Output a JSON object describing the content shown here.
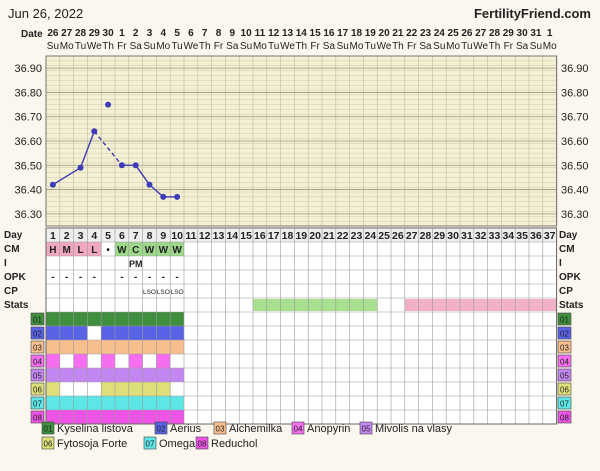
{
  "header": {
    "date": "Jun 26, 2022",
    "brand": "FertilityFriend.com"
  },
  "row_labels": {
    "date": "Date",
    "day": "Day",
    "cm": "CM",
    "intercourse": "I",
    "opk": "OPK",
    "cp": "CP",
    "stats": "Stats"
  },
  "calendar": {
    "dates": [
      "26",
      "27",
      "28",
      "29",
      "30",
      "1",
      "2",
      "3",
      "4",
      "5",
      "6",
      "7",
      "8",
      "9",
      "10",
      "11",
      "12",
      "13",
      "14",
      "15",
      "16",
      "17",
      "18",
      "19",
      "20",
      "21",
      "22",
      "23",
      "24",
      "25",
      "26",
      "27",
      "28",
      "29",
      "30",
      "31",
      "1"
    ],
    "weekdays": [
      "Su",
      "Mo",
      "Tu",
      "We",
      "Th",
      "Fr",
      "Sa",
      "Su",
      "Mo",
      "Tu",
      "We",
      "Th",
      "Fr",
      "Sa",
      "Su",
      "Mo",
      "Tu",
      "We",
      "Th",
      "Fr",
      "Sa",
      "Su",
      "Mo",
      "Tu",
      "We",
      "Th",
      "Fr",
      "Sa",
      "Su",
      "Mo",
      "Tu",
      "We",
      "Th",
      "Fr",
      "Sa",
      "Su",
      "Mo"
    ],
    "days": [
      "1",
      "2",
      "3",
      "4",
      "5",
      "6",
      "7",
      "8",
      "9",
      "10",
      "11",
      "12",
      "13",
      "14",
      "15",
      "16",
      "17",
      "18",
      "19",
      "20",
      "21",
      "22",
      "23",
      "24",
      "25",
      "26",
      "27",
      "28",
      "29",
      "30",
      "31",
      "32",
      "33",
      "34",
      "35",
      "36",
      "37"
    ]
  },
  "chart_data": {
    "type": "line",
    "title": "",
    "xlabel": "Day",
    "ylabel": "",
    "ylim": [
      36.25,
      36.95
    ],
    "y_ticks": [
      "36.90",
      "36.80",
      "36.70",
      "36.60",
      "36.50",
      "36.40",
      "36.30"
    ],
    "grid": true,
    "series": [
      {
        "points": [
          {
            "day": 1,
            "temp": 36.42
          },
          {
            "day": 3,
            "temp": 36.49
          },
          {
            "day": 4,
            "temp": 36.64
          },
          {
            "day": 5,
            "temp": 36.75
          },
          {
            "day": 6,
            "temp": 36.5
          },
          {
            "day": 7,
            "temp": 36.5
          },
          {
            "day": 8,
            "temp": 36.42
          },
          {
            "day": 9,
            "temp": 36.37
          },
          {
            "day": 10,
            "temp": 36.37
          }
        ],
        "segments": [
          {
            "from": 1,
            "to": 3,
            "style": "solid"
          },
          {
            "from": 3,
            "to": 4,
            "style": "solid"
          },
          {
            "from": 4,
            "to": 6,
            "style": "dashed"
          },
          {
            "from": 6,
            "to": 7,
            "style": "solid"
          },
          {
            "from": 7,
            "to": 8,
            "style": "solid"
          },
          {
            "from": 8,
            "to": 9,
            "style": "solid"
          },
          {
            "from": 9,
            "to": 10,
            "style": "solid"
          }
        ]
      }
    ],
    "cm": [
      {
        "day": 1,
        "label": "H",
        "color": "#f2a9bf"
      },
      {
        "day": 2,
        "label": "M",
        "color": "#f2a9bf"
      },
      {
        "day": 3,
        "label": "L",
        "color": "#f2a9bf"
      },
      {
        "day": 4,
        "label": "L",
        "color": "#f2a9bf"
      },
      {
        "day": 5,
        "label": "•",
        "color": ""
      },
      {
        "day": 6,
        "label": "W",
        "color": "#9ed88a"
      },
      {
        "day": 7,
        "label": "C",
        "color": "#9ed88a"
      },
      {
        "day": 8,
        "label": "W",
        "color": "#9ed88a"
      },
      {
        "day": 9,
        "label": "W",
        "color": "#9ed88a"
      },
      {
        "day": 10,
        "label": "W",
        "color": "#9ed88a"
      }
    ],
    "intercourse": [
      {
        "day": 7,
        "label": "PM"
      }
    ],
    "opk": [
      {
        "day": 1,
        "label": "-"
      },
      {
        "day": 2,
        "label": "-"
      },
      {
        "day": 3,
        "label": "-"
      },
      {
        "day": 4,
        "label": "-"
      },
      {
        "day": 6,
        "label": "-"
      },
      {
        "day": 7,
        "label": "-"
      },
      {
        "day": 8,
        "label": "-"
      },
      {
        "day": 9,
        "label": "-"
      },
      {
        "day": 10,
        "label": "-"
      }
    ],
    "cp": [
      {
        "day": 8,
        "label": "LSO"
      },
      {
        "day": 9,
        "label": "LSO"
      },
      {
        "day": 10,
        "label": "LSO"
      }
    ],
    "stats": [
      {
        "from": 16,
        "to": 24,
        "color": "#a9e08f"
      },
      {
        "from": 27,
        "to": 37,
        "color": "#f2b1c4"
      }
    ],
    "supplements": [
      {
        "id": "01",
        "name": "Kyselina listova",
        "color": "#3f8f3f",
        "days": [
          1,
          2,
          3,
          4,
          5,
          6,
          7,
          8,
          9,
          10
        ]
      },
      {
        "id": "02",
        "name": "Aerius",
        "color": "#5a62e6",
        "days": [
          1,
          2,
          3,
          5,
          6,
          7,
          8,
          9,
          10
        ]
      },
      {
        "id": "03",
        "name": "Alchemilka",
        "color": "#f7be8e",
        "days": [
          1,
          2,
          3,
          4,
          5,
          6,
          7,
          8,
          9,
          10
        ]
      },
      {
        "id": "04",
        "name": "Anopyrin",
        "color": "#f56ef0",
        "days": [
          1,
          3,
          5,
          7,
          9
        ]
      },
      {
        "id": "05",
        "name": "Mivolis na vlasy",
        "color": "#c487f2",
        "days": [
          1,
          2,
          3,
          4,
          5,
          6,
          7,
          8,
          9,
          10
        ]
      },
      {
        "id": "06",
        "name": "Fytosoja Forte",
        "color": "#dede7a",
        "days": [
          1,
          5,
          6,
          7,
          8,
          9
        ]
      },
      {
        "id": "07",
        "name": "Omega",
        "color": "#5ee6e6",
        "days": [
          1,
          2,
          3,
          4,
          5,
          6,
          7,
          8,
          9,
          10
        ]
      },
      {
        "id": "08",
        "name": "Reduchol",
        "color": "#ee55e6",
        "days": [
          1,
          2,
          3,
          4,
          5,
          6,
          7,
          8,
          9,
          10
        ]
      }
    ]
  }
}
